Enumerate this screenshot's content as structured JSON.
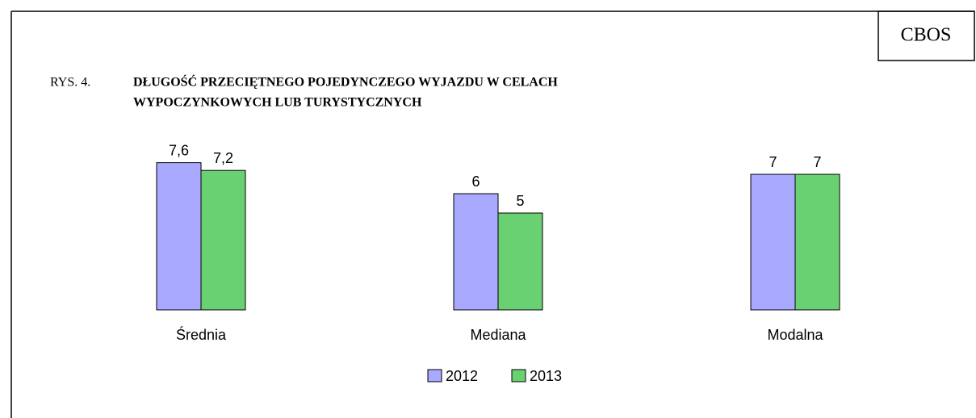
{
  "chart_data": {
    "type": "bar",
    "source": "CBOS",
    "figure_label": "RYS. 4.",
    "title": [
      "DŁUGOŚĆ PRZECIĘTNEGO POJEDYNCZEGO WYJAZDU W CELACH",
      "WYPOCZYNKOWYCH LUB TURYSTYCZNYCH"
    ],
    "categories": [
      "Średnia",
      "Mediana",
      "Modalna"
    ],
    "series": [
      {
        "name": "2012",
        "color": "#a9a9ff",
        "values": [
          7.6,
          6,
          7
        ],
        "value_labels": [
          "7,6",
          "6",
          "7"
        ]
      },
      {
        "name": "2013",
        "color": "#6ad173",
        "values": [
          7.2,
          5,
          7
        ],
        "value_labels": [
          "7,2",
          "5",
          "7"
        ]
      }
    ]
  }
}
